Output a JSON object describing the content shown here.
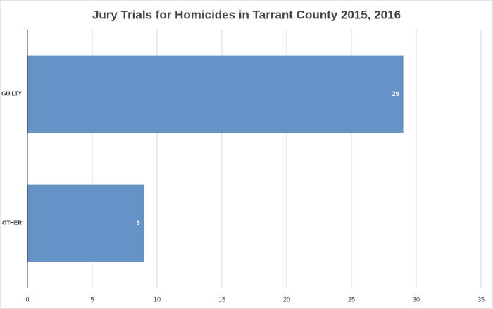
{
  "chart_data": {
    "type": "bar",
    "orientation": "horizontal",
    "title": "Jury Trials for Homicides in Tarrant County 2015, 2016",
    "categories": [
      "GUILTY",
      "OTHER"
    ],
    "values": [
      29,
      9
    ],
    "color": "#6593c8",
    "xlim": [
      0,
      35
    ],
    "xticks": [
      0,
      5,
      10,
      15,
      20,
      25,
      30,
      35
    ],
    "grid": true
  }
}
